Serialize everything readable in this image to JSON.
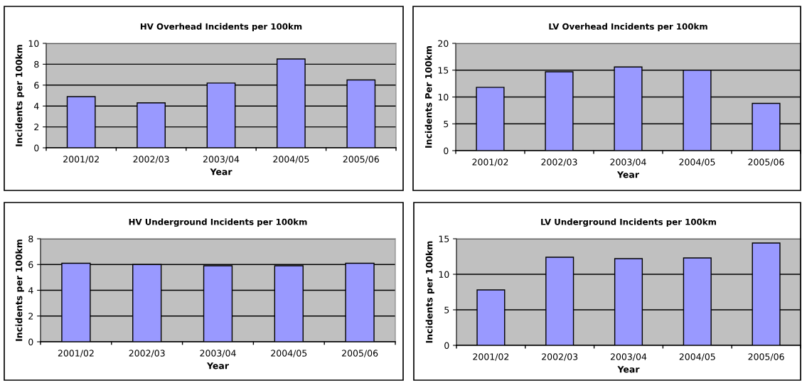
{
  "chart_data": [
    {
      "type": "bar",
      "title": "HV Overhead Incidents per 100km",
      "xlabel": "Year",
      "ylabel": "Incidents per 100km",
      "categories": [
        "2001/02",
        "2002/03",
        "2003/04",
        "2004/05",
        "2005/06"
      ],
      "values": [
        4.9,
        4.3,
        6.2,
        8.5,
        6.5
      ],
      "color": "#9999ff",
      "ylim": [
        0,
        10
      ],
      "yticks": [
        0,
        2,
        4,
        6,
        8,
        10
      ],
      "grid": "y"
    },
    {
      "type": "bar",
      "title": "LV Overhead Incidents per 100km",
      "xlabel": "Year",
      "ylabel": "Incidents Per 100km",
      "categories": [
        "2001/02",
        "2002/03",
        "2003/04",
        "2004/05",
        "2005/06"
      ],
      "values": [
        11.8,
        14.7,
        15.6,
        15.0,
        8.8
      ],
      "color": "#9999ff",
      "ylim": [
        0,
        20
      ],
      "yticks": [
        0,
        5,
        10,
        15,
        20
      ],
      "grid": "y"
    },
    {
      "type": "bar",
      "title": "HV Underground Incidents per 100km",
      "xlabel": "Year",
      "ylabel": "Incidents per 100km",
      "categories": [
        "2001/02",
        "2002/03",
        "2003/04",
        "2004/05",
        "2005/06"
      ],
      "values": [
        6.1,
        6.0,
        5.9,
        5.9,
        6.1
      ],
      "color": "#9999ff",
      "ylim": [
        0,
        8
      ],
      "yticks": [
        0,
        2,
        4,
        6,
        8
      ],
      "grid": "y"
    },
    {
      "type": "bar",
      "title": "LV Underground Incidents per 100km",
      "xlabel": "Year",
      "ylabel": "Incidents per 100km",
      "categories": [
        "2001/02",
        "2002/03",
        "2003/04",
        "2004/05",
        "2005/06"
      ],
      "values": [
        7.8,
        12.4,
        12.2,
        12.3,
        14.4
      ],
      "color": "#9999ff",
      "ylim": [
        0,
        15
      ],
      "yticks": [
        0,
        5,
        10,
        15
      ],
      "grid": "y"
    }
  ]
}
